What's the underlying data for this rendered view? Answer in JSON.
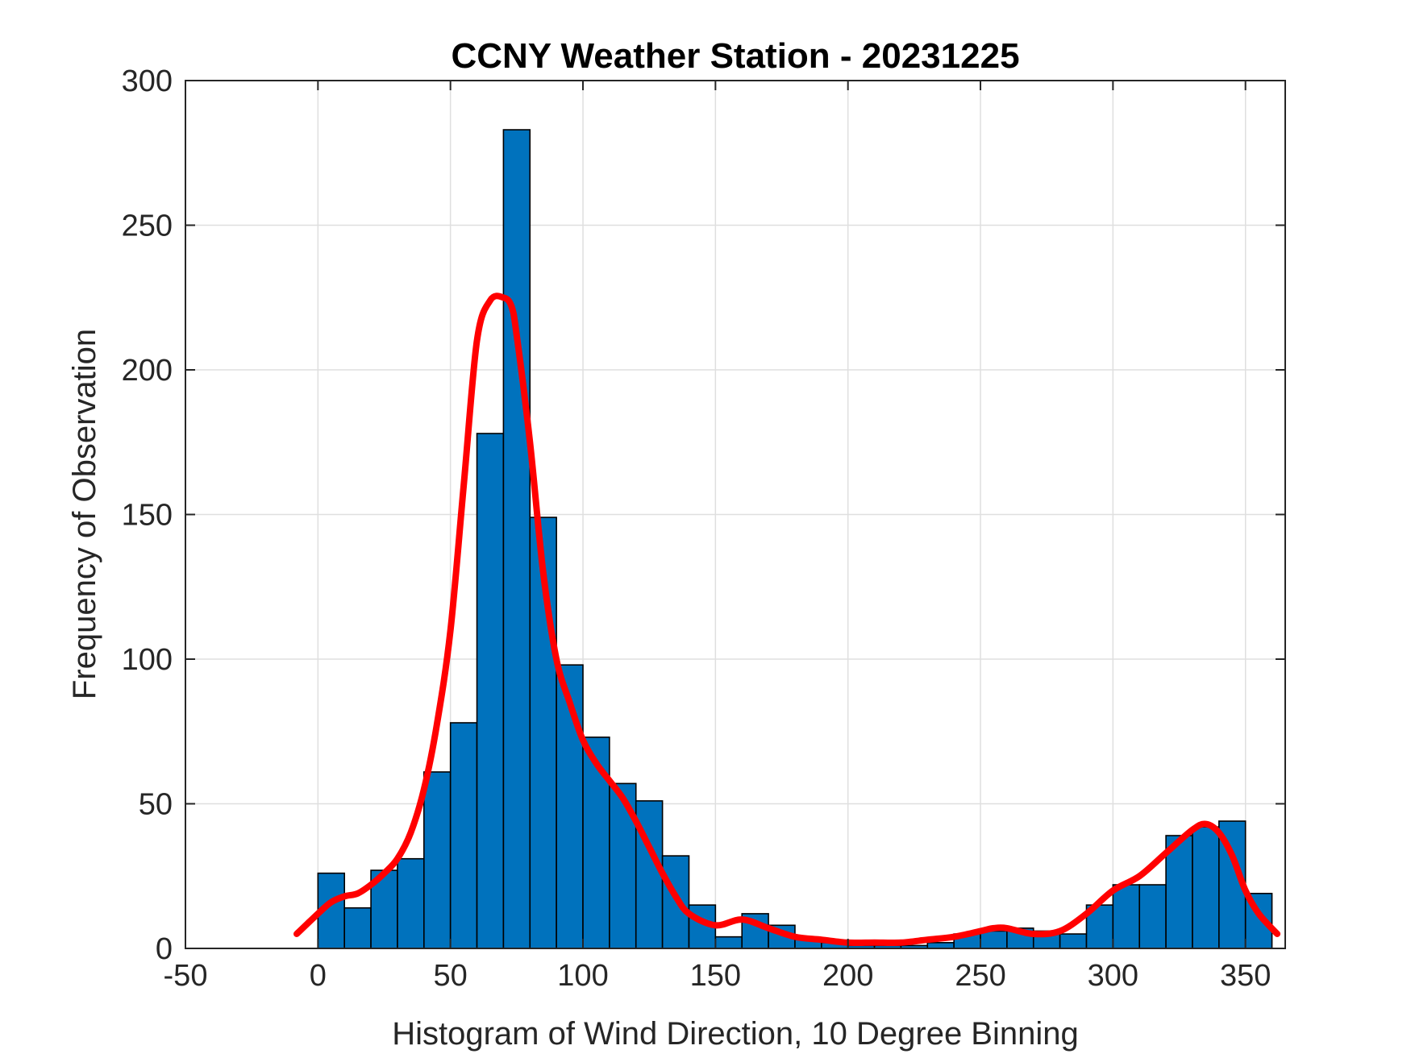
{
  "chart_data": {
    "type": "histogram",
    "title": "CCNY Weather Station - 20231225",
    "xlabel": "Histogram of Wind Direction, 10 Degree Binning",
    "ylabel": "Frequency of Observation",
    "xlim": [
      -50,
      365
    ],
    "ylim": [
      0,
      300
    ],
    "grid": true,
    "x_ticks": [
      -50,
      0,
      50,
      100,
      150,
      200,
      250,
      300,
      350
    ],
    "y_ticks": [
      0,
      50,
      100,
      150,
      200,
      250,
      300
    ],
    "x_tick_labels": [
      "-50",
      "0",
      "50",
      "100",
      "150",
      "200",
      "250",
      "300",
      "350"
    ],
    "y_tick_labels": [
      "0",
      "50",
      "100",
      "150",
      "200",
      "250",
      "300"
    ],
    "bin_width": 10,
    "bin_edges_start": [
      0,
      10,
      20,
      30,
      40,
      50,
      60,
      70,
      80,
      90,
      100,
      110,
      120,
      130,
      140,
      150,
      160,
      170,
      180,
      190,
      200,
      210,
      220,
      230,
      240,
      250,
      260,
      270,
      280,
      290,
      300,
      310,
      320,
      330,
      340,
      350
    ],
    "counts": [
      26,
      14,
      27,
      31,
      61,
      78,
      178,
      283,
      149,
      98,
      73,
      57,
      51,
      32,
      15,
      4,
      12,
      8,
      3,
      2,
      1,
      1,
      1,
      2,
      5,
      6,
      7,
      6,
      5,
      15,
      22,
      22,
      39,
      42,
      44,
      19
    ],
    "bar_color": "#0072bd",
    "bar_edge_color": "#000000",
    "fit_curve": {
      "color": "#ff0000",
      "x": [
        -8,
        0,
        5,
        10,
        15,
        20,
        25,
        30,
        35,
        40,
        45,
        50,
        55,
        60,
        65,
        70,
        73,
        75,
        80,
        85,
        90,
        95,
        100,
        105,
        110,
        115,
        120,
        125,
        130,
        135,
        140,
        150,
        160,
        170,
        180,
        190,
        200,
        210,
        220,
        230,
        240,
        250,
        255,
        260,
        270,
        280,
        290,
        300,
        310,
        320,
        330,
        335,
        340,
        345,
        350,
        355,
        362
      ],
      "y": [
        5,
        12,
        16,
        18,
        19,
        22,
        26,
        31,
        40,
        55,
        78,
        110,
        160,
        210,
        224,
        225,
        222,
        212,
        175,
        130,
        100,
        85,
        72,
        64,
        58,
        52,
        44,
        35,
        26,
        18,
        12,
        8,
        10,
        7,
        4,
        3,
        2,
        2,
        2,
        3,
        4,
        6,
        7,
        7,
        5,
        6,
        12,
        20,
        25,
        33,
        41,
        43,
        40,
        32,
        20,
        12,
        5
      ]
    }
  }
}
